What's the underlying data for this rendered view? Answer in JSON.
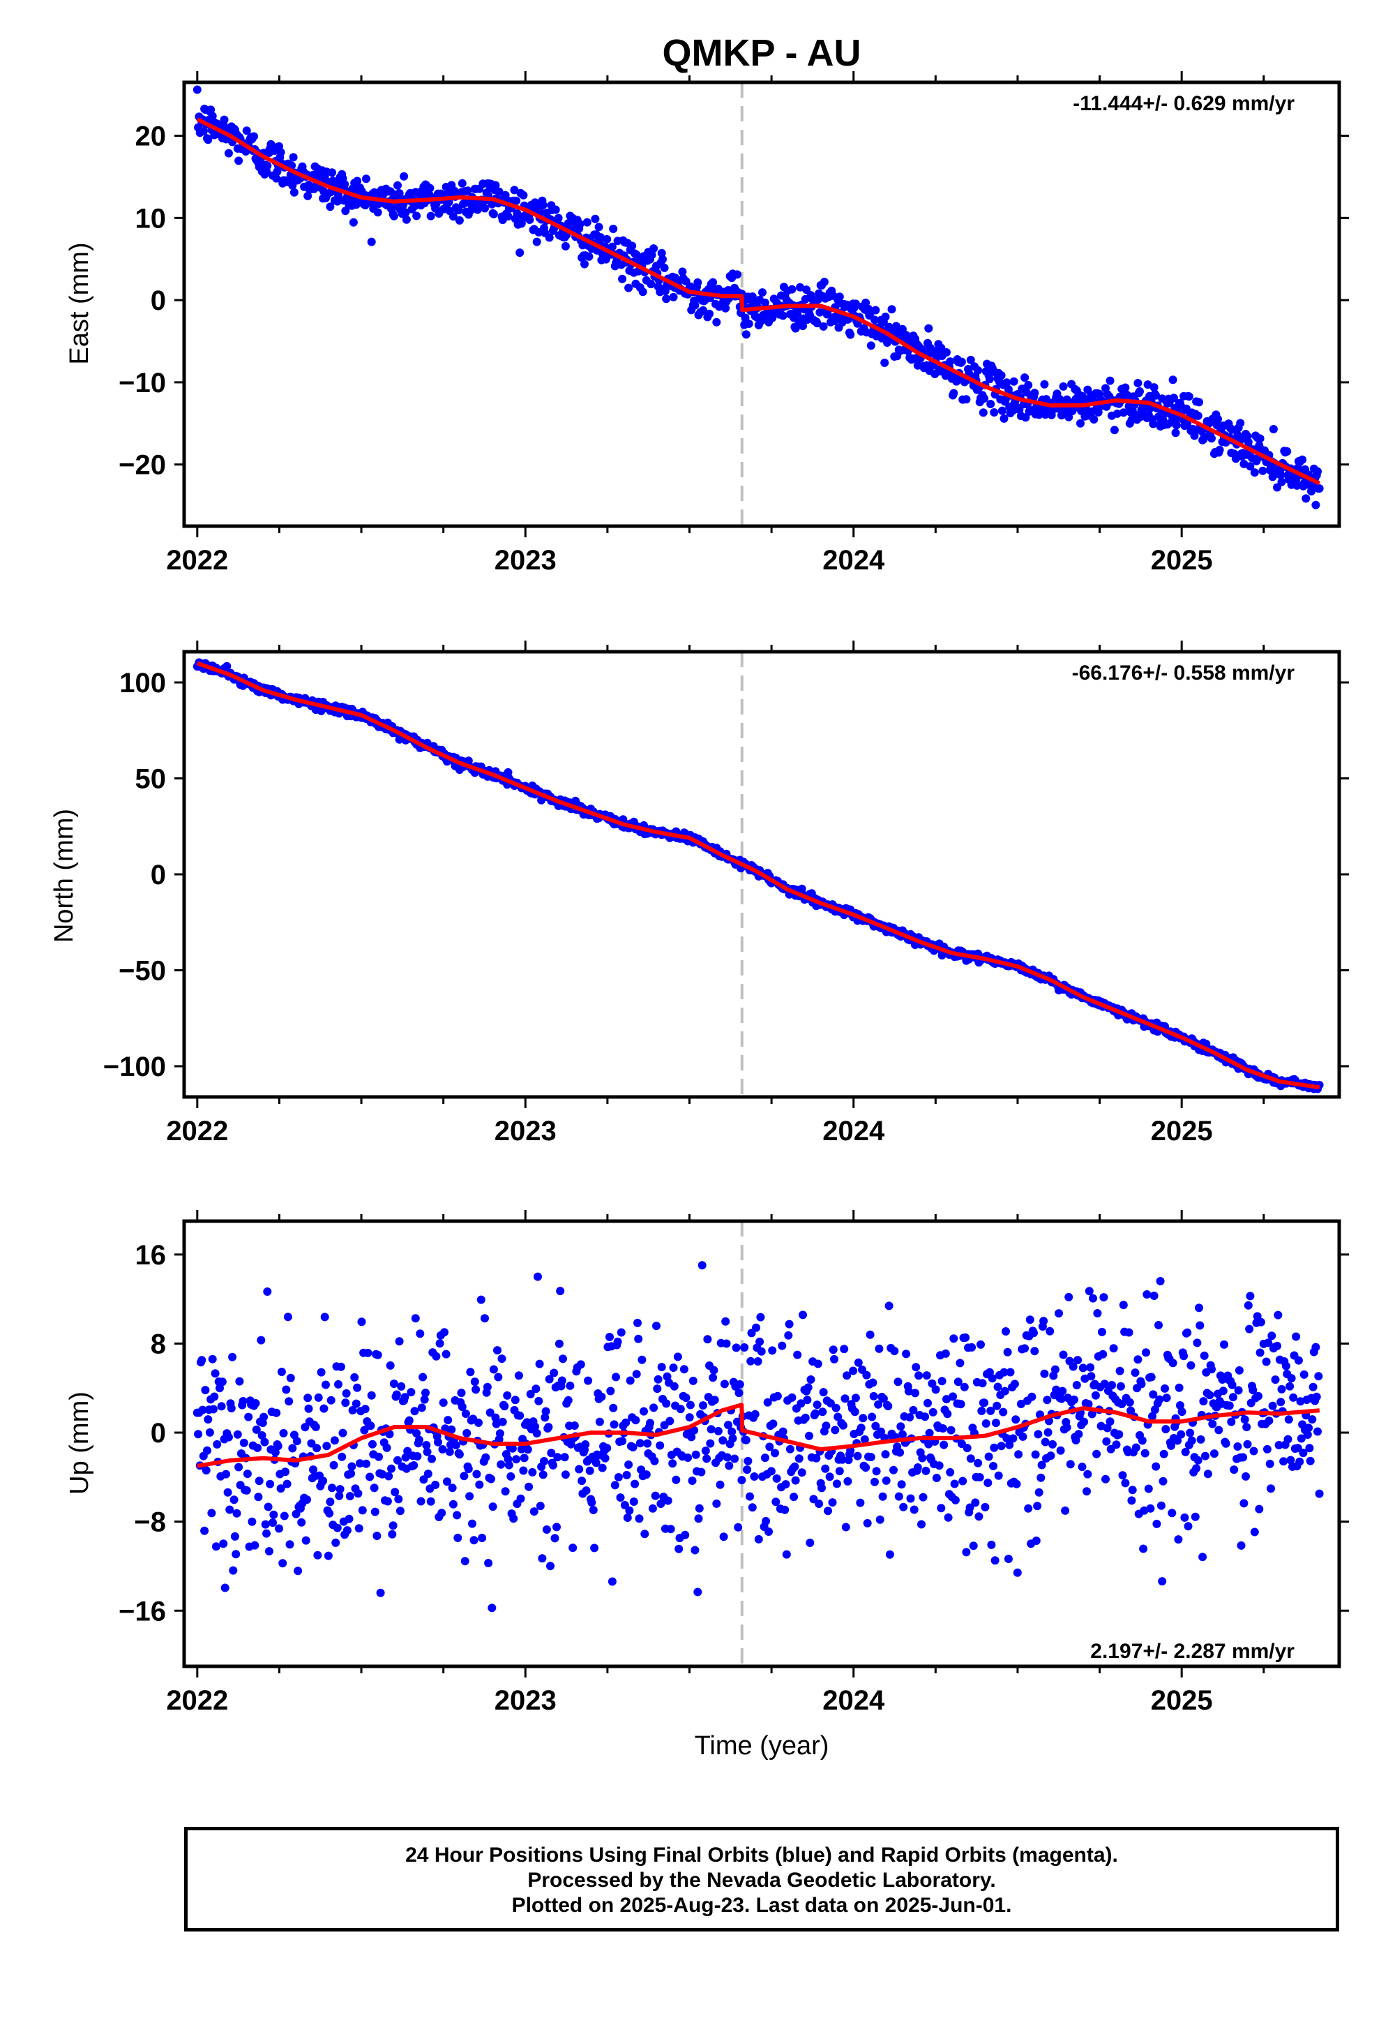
{
  "title": "QMKP - AU",
  "xlabel": "Time (year)",
  "colors": {
    "points": "#0000ff",
    "model": "#ff0000",
    "offset_line": "#bfbfbf",
    "frame": "#000000"
  },
  "footer": {
    "line1": "24 Hour Positions Using Final Orbits (blue) and Rapid Orbits (magenta).",
    "line2": "Processed by the Nevada Geodetic Laboratory.",
    "line3": "Plotted on 2025-Aug-23. Last data on 2025-Jun-01."
  },
  "chart_data": [
    {
      "type": "scatter",
      "panel": "east",
      "ylabel": "East (mm)",
      "rate_label": "-11.444+/- 0.629 mm/yr",
      "rate_position": "top-right",
      "xlim": [
        2021.96,
        2025.48
      ],
      "ylim": [
        -27.5,
        26.5
      ],
      "xticks": [
        2022,
        2023,
        2024,
        2025
      ],
      "xtick_labels": [
        "2022",
        "2023",
        "2024",
        "2025"
      ],
      "yticks": [
        -20,
        -10,
        0,
        10,
        20
      ],
      "ytick_labels": [
        "−20",
        "−10",
        "0",
        "10",
        "20"
      ],
      "offset_epoch": 2023.66,
      "scatter_sd": 1.3,
      "model": [
        [
          2022.0,
          22.0
        ],
        [
          2022.1,
          20.0
        ],
        [
          2022.2,
          17.5
        ],
        [
          2022.3,
          15.5
        ],
        [
          2022.4,
          13.8
        ],
        [
          2022.5,
          12.5
        ],
        [
          2022.6,
          12.0
        ],
        [
          2022.7,
          12.2
        ],
        [
          2022.8,
          12.5
        ],
        [
          2022.9,
          12.3
        ],
        [
          2023.0,
          11.0
        ],
        [
          2023.1,
          9.0
        ],
        [
          2023.2,
          7.0
        ],
        [
          2023.3,
          5.0
        ],
        [
          2023.4,
          3.0
        ],
        [
          2023.5,
          1.0
        ],
        [
          2023.6,
          0.5
        ],
        [
          2023.659,
          0.5
        ],
        [
          2023.661,
          -1.2
        ],
        [
          2023.8,
          -0.7
        ],
        [
          2023.9,
          -0.7
        ],
        [
          2024.0,
          -2.0
        ],
        [
          2024.1,
          -4.0
        ],
        [
          2024.2,
          -6.5
        ],
        [
          2024.3,
          -8.5
        ],
        [
          2024.4,
          -10.5
        ],
        [
          2024.5,
          -12.0
        ],
        [
          2024.6,
          -12.8
        ],
        [
          2024.7,
          -12.8
        ],
        [
          2024.8,
          -12.2
        ],
        [
          2024.9,
          -12.5
        ],
        [
          2025.0,
          -14.0
        ],
        [
          2025.1,
          -16.0
        ],
        [
          2025.2,
          -18.0
        ],
        [
          2025.3,
          -20.0
        ],
        [
          2025.42,
          -22.3
        ]
      ]
    },
    {
      "type": "scatter",
      "panel": "north",
      "ylabel": "North (mm)",
      "rate_label": "-66.176+/- 0.558 mm/yr",
      "rate_position": "top-right",
      "xlim": [
        2021.96,
        2025.48
      ],
      "ylim": [
        -116,
        116
      ],
      "xticks": [
        2022,
        2023,
        2024,
        2025
      ],
      "xtick_labels": [
        "2022",
        "2023",
        "2024",
        "2025"
      ],
      "yticks": [
        -100,
        -50,
        0,
        50,
        100
      ],
      "ytick_labels": [
        "−100",
        "−50",
        "0",
        "50",
        "100"
      ],
      "offset_epoch": 2023.66,
      "scatter_sd": 1.1,
      "model": [
        [
          2022.0,
          110.0
        ],
        [
          2022.1,
          104.0
        ],
        [
          2022.2,
          96.0
        ],
        [
          2022.3,
          91.0
        ],
        [
          2022.4,
          87.0
        ],
        [
          2022.5,
          83.0
        ],
        [
          2022.6,
          75.0
        ],
        [
          2022.7,
          66.0
        ],
        [
          2022.8,
          58.0
        ],
        [
          2022.9,
          52.0
        ],
        [
          2023.0,
          45.0
        ],
        [
          2023.1,
          38.0
        ],
        [
          2023.2,
          32.0
        ],
        [
          2023.3,
          26.0
        ],
        [
          2023.4,
          22.0
        ],
        [
          2023.5,
          19.0
        ],
        [
          2023.6,
          10.0
        ],
        [
          2023.7,
          2.0
        ],
        [
          2023.8,
          -8.0
        ],
        [
          2023.9,
          -15.0
        ],
        [
          2024.0,
          -21.0
        ],
        [
          2024.1,
          -28.0
        ],
        [
          2024.2,
          -35.0
        ],
        [
          2024.3,
          -41.0
        ],
        [
          2024.4,
          -44.0
        ],
        [
          2024.5,
          -48.0
        ],
        [
          2024.6,
          -55.0
        ],
        [
          2024.7,
          -64.0
        ],
        [
          2024.8,
          -71.0
        ],
        [
          2024.9,
          -78.0
        ],
        [
          2025.0,
          -85.0
        ],
        [
          2025.1,
          -93.0
        ],
        [
          2025.2,
          -102.0
        ],
        [
          2025.3,
          -108.0
        ],
        [
          2025.42,
          -111.0
        ]
      ]
    },
    {
      "type": "scatter",
      "panel": "up",
      "ylabel": "Up (mm)",
      "rate_label": "2.197+/- 2.287 mm/yr",
      "rate_position": "bottom-right",
      "xlim": [
        2021.96,
        2025.48
      ],
      "ylim": [
        -21,
        19
      ],
      "xticks": [
        2022,
        2023,
        2024,
        2025
      ],
      "xtick_labels": [
        "2022",
        "2023",
        "2024",
        "2025"
      ],
      "yticks": [
        -16,
        -8,
        0,
        8,
        16
      ],
      "ytick_labels": [
        "−16",
        "−8",
        "0",
        "8",
        "16"
      ],
      "offset_epoch": 2023.66,
      "scatter_sd": 5.0,
      "model": [
        [
          2022.0,
          -3.0
        ],
        [
          2022.1,
          -2.5
        ],
        [
          2022.2,
          -2.3
        ],
        [
          2022.3,
          -2.5
        ],
        [
          2022.4,
          -2.0
        ],
        [
          2022.5,
          -0.5
        ],
        [
          2022.6,
          0.5
        ],
        [
          2022.7,
          0.5
        ],
        [
          2022.8,
          -0.5
        ],
        [
          2022.9,
          -1.0
        ],
        [
          2023.0,
          -1.0
        ],
        [
          2023.1,
          -0.5
        ],
        [
          2023.2,
          0.0
        ],
        [
          2023.3,
          0.0
        ],
        [
          2023.4,
          -0.2
        ],
        [
          2023.5,
          0.5
        ],
        [
          2023.6,
          2.0
        ],
        [
          2023.659,
          2.5
        ],
        [
          2023.661,
          0.2
        ],
        [
          2023.8,
          -0.8
        ],
        [
          2023.9,
          -1.5
        ],
        [
          2024.0,
          -1.2
        ],
        [
          2024.1,
          -0.8
        ],
        [
          2024.2,
          -0.5
        ],
        [
          2024.3,
          -0.5
        ],
        [
          2024.4,
          -0.3
        ],
        [
          2024.5,
          0.5
        ],
        [
          2024.6,
          1.5
        ],
        [
          2024.7,
          2.2
        ],
        [
          2024.8,
          1.8
        ],
        [
          2024.9,
          1.0
        ],
        [
          2025.0,
          1.0
        ],
        [
          2025.1,
          1.5
        ],
        [
          2025.2,
          1.8
        ],
        [
          2025.3,
          1.7
        ],
        [
          2025.42,
          2.0
        ]
      ]
    }
  ]
}
